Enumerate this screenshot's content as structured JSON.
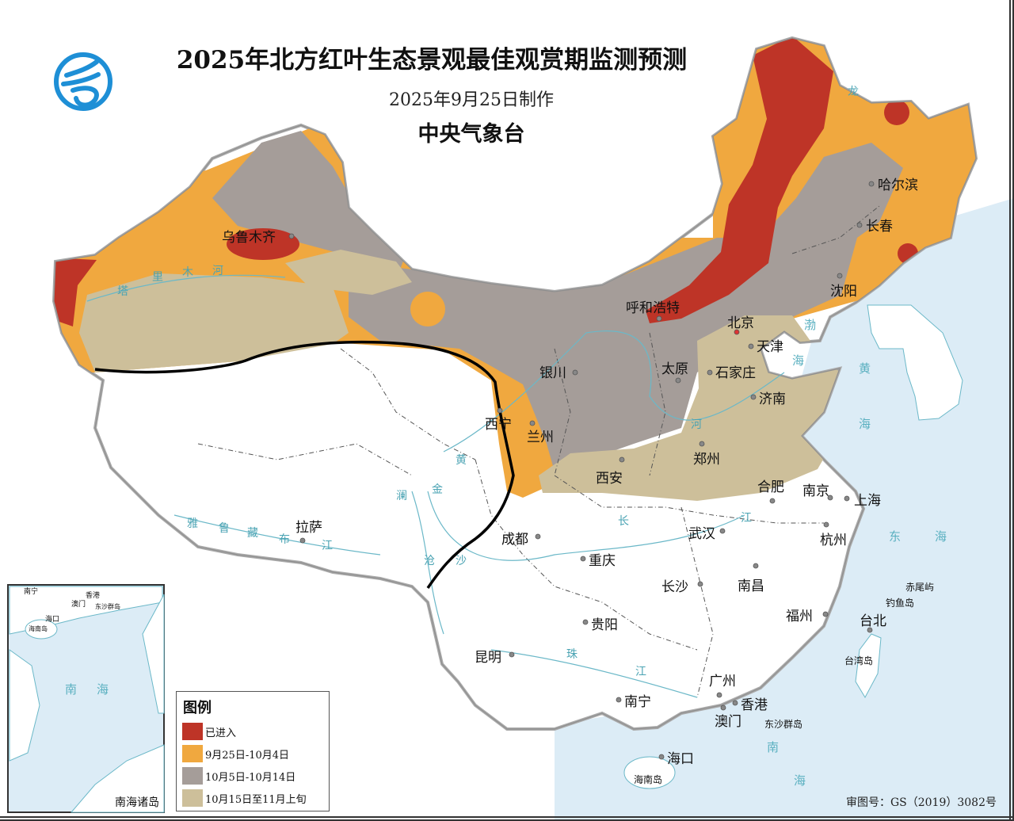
{
  "header": {
    "title": "2025年北方红叶生态景观最佳观赏期监测预测",
    "subtitle": "2025年9月25日制作",
    "organization": "中央气象台",
    "logo": "cma-logo"
  },
  "legend": {
    "title": "图例",
    "items": [
      {
        "label": "已进入",
        "color": "#be3427"
      },
      {
        "label": "9月25日-10月4日",
        "color": "#f0a83f"
      },
      {
        "label": "10月5日-10月14日",
        "color": "#a59d99"
      },
      {
        "label": "10月15日至11月上旬",
        "color": "#cdbf9a"
      }
    ]
  },
  "colors": {
    "sea": "#dcecf6",
    "river": "#6bb8c8",
    "boundary_line": "#000000"
  },
  "cities": [
    "乌鲁木齐",
    "哈尔滨",
    "长春",
    "沈阳",
    "呼和浩特",
    "北京",
    "天津",
    "石家庄",
    "太原",
    "银川",
    "济南",
    "西宁",
    "兰州",
    "郑州",
    "西安",
    "合肥",
    "南京",
    "上海",
    "拉萨",
    "成都",
    "武汉",
    "杭州",
    "重庆",
    "长沙",
    "南昌",
    "福州",
    "台北",
    "贵阳",
    "昆明",
    "广州",
    "南宁",
    "香港",
    "澳门",
    "海口"
  ],
  "islands": [
    "赤尾屿",
    "钓鱼岛",
    "台湾岛",
    "东沙群岛",
    "海南岛"
  ],
  "seas": {
    "bohai": [
      "渤",
      "海"
    ],
    "yellow": [
      "黄",
      "海"
    ],
    "east": [
      "东",
      "海"
    ],
    "south": [
      "南",
      "海"
    ]
  },
  "rivers": {
    "tarim": [
      "塔",
      "里",
      "木",
      "河"
    ],
    "yarlung": [
      "雅",
      "鲁",
      "藏",
      "布",
      "江"
    ],
    "yellow": [
      "黄",
      "河"
    ],
    "yangtze": [
      "长",
      "江"
    ],
    "pearl": [
      "珠",
      "江"
    ],
    "lancang": [
      "澜",
      "沧"
    ],
    "jinsha": [
      "金",
      "沙"
    ],
    "heilong": [
      "龙"
    ]
  },
  "inset": {
    "labels": [
      "南宁",
      "香港",
      "澳门",
      "东沙群岛",
      "海口",
      "海南岛"
    ],
    "sea": [
      "南",
      "海"
    ],
    "title": "南海诸岛"
  },
  "approval": "审图号：GS（2019）3082号"
}
